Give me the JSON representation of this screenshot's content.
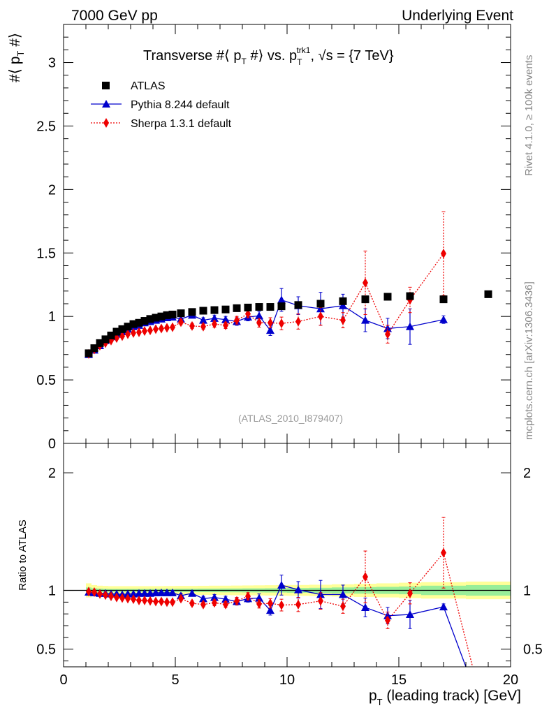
{
  "header": {
    "left": "7000 GeV pp",
    "right": "Underlying Event"
  },
  "side_labels": {
    "rivet": "Rivet 4.1.0, ≥ 100k events",
    "mcplots": "mcplots.cern.ch [arXiv:1306.3436]"
  },
  "colors": {
    "atlas": "#000000",
    "pythia": "#0000cc",
    "sherpa": "#ee0000",
    "band_outer": "#ffff99",
    "band_inner": "#99ee99"
  },
  "chart_data": [
    {
      "type": "scatter",
      "title": "Transverse #⟨ p_T #⟩ vs. p_T^trk1, √s = {7 TeV}",
      "title_parts": {
        "a": "Transverse #",
        "b": " p",
        "c": " #",
        "d": " vs. p",
        "e": "T",
        "f": "trk1",
        "g": ", ",
        "h": "s = {7 TeV}"
      },
      "ylabel_parts": {
        "a": "#",
        "b": " p",
        "c": "T",
        "d": " #"
      },
      "watermark": "(ATLAS_2010_I879407)",
      "xlim": [
        0,
        20
      ],
      "ylim": [
        0,
        3.3
      ],
      "y_ticks": [
        0,
        0.5,
        1,
        1.5,
        2,
        2.5,
        3
      ],
      "y_tick_labels": [
        "0",
        "0.5",
        "1",
        "1.5",
        "2",
        "2.5",
        "3"
      ],
      "legend": {
        "position": "top-left",
        "entries": [
          "ATLAS",
          "Pythia 8.244 default",
          "Sherpa 1.3.1 default"
        ]
      },
      "series": [
        {
          "name": "ATLAS",
          "marker": "square",
          "line": "none",
          "x": [
            1.125,
            1.375,
            1.625,
            1.875,
            2.125,
            2.375,
            2.625,
            2.875,
            3.125,
            3.375,
            3.625,
            3.875,
            4.125,
            4.375,
            4.625,
            4.875,
            5.25,
            5.75,
            6.25,
            6.75,
            7.25,
            7.75,
            8.25,
            8.75,
            9.25,
            9.75,
            10.5,
            11.5,
            12.5,
            13.5,
            14.5,
            15.5,
            17,
            19
          ],
          "y": [
            0.71,
            0.75,
            0.79,
            0.82,
            0.85,
            0.88,
            0.9,
            0.92,
            0.94,
            0.95,
            0.965,
            0.98,
            0.99,
            1.0,
            1.01,
            1.015,
            1.025,
            1.035,
            1.045,
            1.05,
            1.055,
            1.065,
            1.07,
            1.075,
            1.075,
            1.08,
            1.09,
            1.1,
            1.12,
            1.135,
            1.155,
            1.16,
            1.135,
            1.175
          ],
          "yerr": [
            0,
            0,
            0,
            0,
            0,
            0,
            0,
            0,
            0,
            0,
            0,
            0,
            0,
            0,
            0,
            0,
            0,
            0,
            0,
            0,
            0,
            0,
            0,
            0,
            0,
            0,
            0,
            0,
            0,
            0,
            0,
            0,
            0,
            0
          ]
        },
        {
          "name": "Pythia 8.244 default",
          "marker": "triangle",
          "line": "solid",
          "x": [
            1.125,
            1.375,
            1.625,
            1.875,
            2.125,
            2.375,
            2.625,
            2.875,
            3.125,
            3.375,
            3.625,
            3.875,
            4.125,
            4.375,
            4.625,
            4.875,
            5.25,
            5.75,
            6.25,
            6.75,
            7.25,
            7.75,
            8.25,
            8.75,
            9.25,
            9.75,
            10.5,
            11.5,
            12.5,
            13.5,
            14.5,
            15.5,
            17
          ],
          "y": [
            0.7,
            0.735,
            0.77,
            0.81,
            0.84,
            0.86,
            0.88,
            0.9,
            0.92,
            0.93,
            0.95,
            0.96,
            0.97,
            0.98,
            0.99,
            0.995,
            0.98,
            1.01,
            0.97,
            0.985,
            0.975,
            0.96,
            0.995,
            1.005,
            0.89,
            1.13,
            1.085,
            1.06,
            1.085,
            0.97,
            0.905,
            0.92,
            0.975
          ],
          "yerr": [
            0.01,
            0.01,
            0.01,
            0.01,
            0.01,
            0.01,
            0.01,
            0.01,
            0.01,
            0.015,
            0.015,
            0.015,
            0.015,
            0.015,
            0.015,
            0.02,
            0.02,
            0.02,
            0.02,
            0.025,
            0.025,
            0.03,
            0.03,
            0.035,
            0.04,
            0.09,
            0.07,
            0.13,
            0.09,
            0.09,
            0.08,
            0.14,
            0.03
          ]
        },
        {
          "name": "Sherpa 1.3.1 default",
          "marker": "diamond",
          "line": "dotted",
          "x": [
            1.125,
            1.375,
            1.625,
            1.875,
            2.125,
            2.375,
            2.625,
            2.875,
            3.125,
            3.375,
            3.625,
            3.875,
            4.125,
            4.375,
            4.625,
            4.875,
            5.25,
            5.75,
            6.25,
            6.75,
            7.25,
            7.75,
            8.25,
            8.75,
            9.25,
            9.75,
            10.5,
            11.5,
            12.5,
            13.5,
            14.5,
            15.5,
            17
          ],
          "y": [
            0.705,
            0.74,
            0.77,
            0.79,
            0.81,
            0.83,
            0.845,
            0.86,
            0.87,
            0.875,
            0.885,
            0.89,
            0.9,
            0.905,
            0.91,
            0.915,
            0.955,
            0.925,
            0.92,
            0.94,
            0.93,
            0.97,
            1.02,
            0.95,
            0.95,
            0.945,
            0.96,
            1.0,
            0.97,
            1.265,
            0.86,
            1.13,
            1.495
          ],
          "yerr": [
            0.01,
            0.01,
            0.01,
            0.01,
            0.01,
            0.01,
            0.01,
            0.01,
            0.01,
            0.01,
            0.01,
            0.01,
            0.01,
            0.015,
            0.015,
            0.015,
            0.02,
            0.02,
            0.02,
            0.025,
            0.025,
            0.03,
            0.03,
            0.035,
            0.04,
            0.05,
            0.06,
            0.07,
            0.06,
            0.25,
            0.07,
            0.1,
            0.33
          ]
        }
      ]
    },
    {
      "type": "scatter",
      "title": "",
      "xlabel": "p_T (leading track) [GeV]",
      "xlabel_parts": {
        "a": "p",
        "b": "T",
        "c": " (leading track) [GeV]"
      },
      "ylabel": "Ratio to ATLAS",
      "xlim": [
        0,
        20
      ],
      "ylim": [
        0.35,
        2.25
      ],
      "x_ticks": [
        0,
        5,
        10,
        15,
        20
      ],
      "x_tick_labels": [
        "0",
        "5",
        "10",
        "15",
        "20"
      ],
      "y_ticks": [
        0.5,
        1,
        2
      ],
      "y_tick_labels": [
        "0.5",
        "1",
        "2"
      ],
      "band_edges": [
        1.0,
        1.25,
        1.5,
        1.75,
        2.0,
        2.25,
        2.5,
        2.75,
        3.0,
        3.25,
        3.5,
        3.75,
        4.0,
        4.25,
        4.5,
        4.75,
        5.0,
        5.5,
        6.0,
        6.5,
        7.0,
        7.5,
        8.0,
        8.5,
        9.0,
        9.5,
        10.0,
        11.0,
        12.0,
        13.0,
        14.0,
        15.0,
        16.0,
        18.0,
        20.0
      ],
      "band_inner": [
        0.025,
        0.018,
        0.015,
        0.013,
        0.012,
        0.012,
        0.012,
        0.012,
        0.012,
        0.012,
        0.012,
        0.012,
        0.012,
        0.012,
        0.013,
        0.013,
        0.014,
        0.014,
        0.015,
        0.015,
        0.016,
        0.016,
        0.017,
        0.017,
        0.018,
        0.018,
        0.02,
        0.022,
        0.025,
        0.028,
        0.03,
        0.033,
        0.04,
        0.045
      ],
      "band_outer": [
        0.06,
        0.045,
        0.04,
        0.038,
        0.036,
        0.036,
        0.036,
        0.036,
        0.036,
        0.036,
        0.036,
        0.036,
        0.036,
        0.036,
        0.037,
        0.037,
        0.038,
        0.038,
        0.039,
        0.04,
        0.04,
        0.041,
        0.042,
        0.043,
        0.044,
        0.045,
        0.046,
        0.048,
        0.052,
        0.056,
        0.06,
        0.065,
        0.07,
        0.075
      ],
      "series": [
        {
          "name": "Pythia 8.244 default",
          "marker": "triangle",
          "line": "solid",
          "x": [
            1.125,
            1.375,
            1.625,
            1.875,
            2.125,
            2.375,
            2.625,
            2.875,
            3.125,
            3.375,
            3.625,
            3.875,
            4.125,
            4.375,
            4.625,
            4.875,
            5.25,
            5.75,
            6.25,
            6.75,
            7.25,
            7.75,
            8.25,
            8.75,
            9.25,
            9.75,
            10.5,
            11.5,
            12.5,
            13.5,
            14.5,
            15.5,
            17,
            18.0
          ],
          "y": [
            0.985,
            0.98,
            0.975,
            0.975,
            0.97,
            0.97,
            0.965,
            0.97,
            0.97,
            0.975,
            0.975,
            0.975,
            0.98,
            0.98,
            0.98,
            0.98,
            0.955,
            0.975,
            0.93,
            0.94,
            0.925,
            0.905,
            0.93,
            0.935,
            0.83,
            1.045,
            1.005,
            0.965,
            0.965,
            0.855,
            0.785,
            0.795,
            0.86,
            0.35
          ],
          "yerr": [
            0.01,
            0.01,
            0.01,
            0.01,
            0.01,
            0.01,
            0.01,
            0.01,
            0.01,
            0.015,
            0.015,
            0.015,
            0.015,
            0.015,
            0.015,
            0.02,
            0.02,
            0.02,
            0.02,
            0.025,
            0.025,
            0.03,
            0.03,
            0.035,
            0.04,
            0.085,
            0.07,
            0.12,
            0.08,
            0.08,
            0.07,
            0.12,
            0.025,
            0
          ]
        },
        {
          "name": "Sherpa 1.3.1 default",
          "marker": "diamond",
          "line": "dotted",
          "x": [
            1.125,
            1.375,
            1.625,
            1.875,
            2.125,
            2.375,
            2.625,
            2.875,
            3.125,
            3.375,
            3.625,
            3.875,
            4.125,
            4.375,
            4.625,
            4.875,
            5.25,
            5.75,
            6.25,
            6.75,
            7.25,
            7.75,
            8.25,
            8.75,
            9.25,
            9.75,
            10.5,
            11.5,
            12.5,
            13.5,
            14.5,
            15.5,
            17,
            18.3
          ],
          "y": [
            0.99,
            0.985,
            0.97,
            0.96,
            0.95,
            0.94,
            0.935,
            0.93,
            0.925,
            0.915,
            0.915,
            0.91,
            0.905,
            0.905,
            0.9,
            0.9,
            0.93,
            0.89,
            0.88,
            0.895,
            0.88,
            0.91,
            0.95,
            0.885,
            0.89,
            0.875,
            0.88,
            0.91,
            0.865,
            1.115,
            0.745,
            0.975,
            1.32,
            0.35
          ],
          "yerr": [
            0.01,
            0.01,
            0.01,
            0.01,
            0.01,
            0.01,
            0.01,
            0.01,
            0.01,
            0.01,
            0.01,
            0.01,
            0.01,
            0.015,
            0.015,
            0.015,
            0.02,
            0.02,
            0.02,
            0.025,
            0.025,
            0.03,
            0.03,
            0.035,
            0.04,
            0.05,
            0.06,
            0.07,
            0.06,
            0.22,
            0.07,
            0.09,
            0.3,
            0
          ]
        }
      ]
    }
  ]
}
